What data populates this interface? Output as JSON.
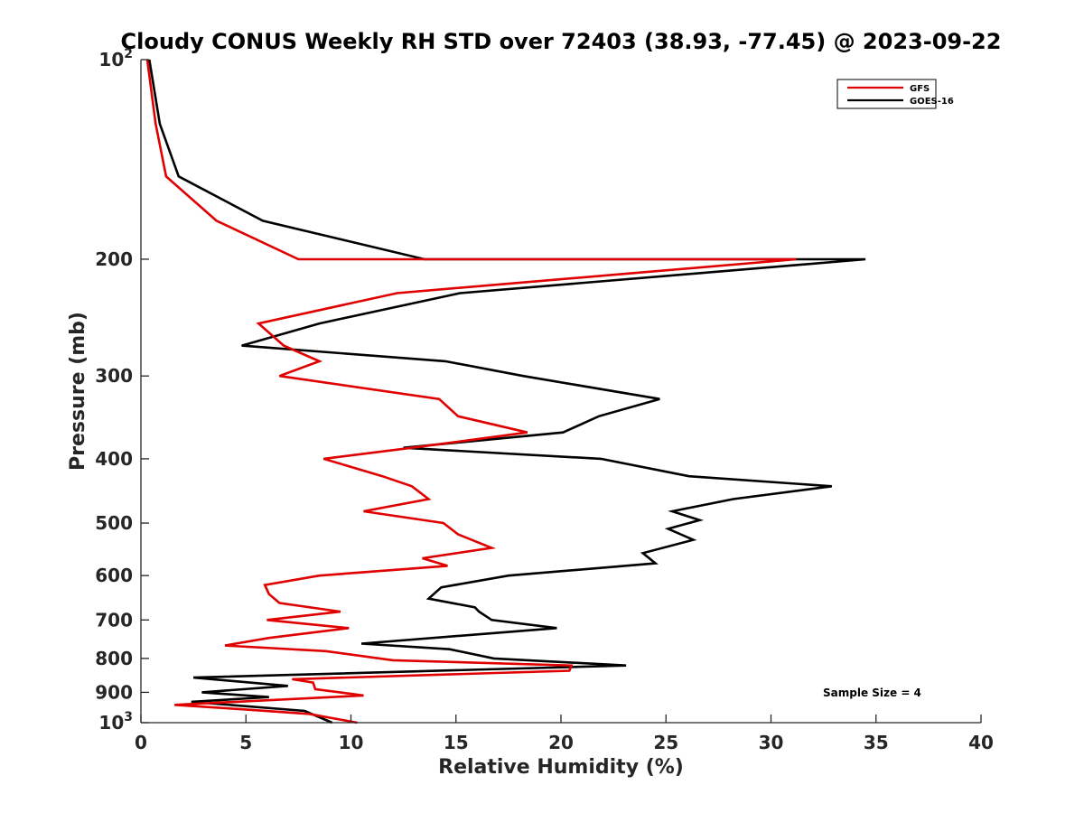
{
  "chart_data": {
    "type": "line",
    "title": "Cloudy CONUS Weekly RH STD over 72403 (38.93, -77.45) @ 2023-09-22",
    "xlabel": "Relative Humidity (%)",
    "ylabel": "Pressure (mb)",
    "xlim": [
      0,
      40
    ],
    "ylim": [
      100,
      1000
    ],
    "y_scale": "log",
    "y_reversed": true,
    "grid": false,
    "legend_position": "top-right",
    "x_ticks": [
      "0",
      "5",
      "10",
      "15",
      "20",
      "25",
      "30",
      "35",
      "40"
    ],
    "y_ticks": [
      {
        "value": 100,
        "label": "10",
        "sup": "2"
      },
      {
        "value": 200,
        "label": "200",
        "sup": ""
      },
      {
        "value": 300,
        "label": "300",
        "sup": ""
      },
      {
        "value": 400,
        "label": "400",
        "sup": ""
      },
      {
        "value": 500,
        "label": "500",
        "sup": ""
      },
      {
        "value": 600,
        "label": "600",
        "sup": ""
      },
      {
        "value": 700,
        "label": "700",
        "sup": ""
      },
      {
        "value": 800,
        "label": "800",
        "sup": ""
      },
      {
        "value": 900,
        "label": "900",
        "sup": ""
      },
      {
        "value": 1000,
        "label": "10",
        "sup": "3"
      }
    ],
    "annotation": "Sample Size = 4",
    "series": [
      {
        "name": "GFS",
        "color": "#e00000",
        "points": [
          [
            0.3,
            100
          ],
          [
            0.7,
            125
          ],
          [
            1.2,
            150
          ],
          [
            3.6,
            175
          ],
          [
            7.5,
            200
          ],
          [
            31.2,
            200
          ],
          [
            12.2,
            225
          ],
          [
            5.6,
            250
          ],
          [
            6.8,
            270
          ],
          [
            8.5,
            285
          ],
          [
            6.6,
            300
          ],
          [
            14.2,
            325
          ],
          [
            15.1,
            345
          ],
          [
            18.4,
            365
          ],
          [
            12.9,
            385
          ],
          [
            8.7,
            400
          ],
          [
            11.5,
            425
          ],
          [
            12.9,
            440
          ],
          [
            13.7,
            460
          ],
          [
            10.6,
            480
          ],
          [
            14.4,
            500
          ],
          [
            15.1,
            520
          ],
          [
            16.7,
            545
          ],
          [
            13.4,
            565
          ],
          [
            14.6,
            580
          ],
          [
            8.5,
            600
          ],
          [
            5.9,
            620
          ],
          [
            6.1,
            640
          ],
          [
            6.6,
            660
          ],
          [
            9.5,
            680
          ],
          [
            6.0,
            700
          ],
          [
            9.9,
            720
          ],
          [
            6.1,
            745
          ],
          [
            4.0,
            765
          ],
          [
            8.8,
            780
          ],
          [
            12.0,
            805
          ],
          [
            20.5,
            820
          ],
          [
            20.4,
            835
          ],
          [
            7.2,
            860
          ],
          [
            8.2,
            870
          ],
          [
            8.3,
            890
          ],
          [
            10.6,
            910
          ],
          [
            1.6,
            940
          ],
          [
            4.9,
            955
          ],
          [
            8.0,
            970
          ],
          [
            10.3,
            1000
          ]
        ]
      },
      {
        "name": "GOES-16",
        "color": "#000000",
        "points": [
          [
            0.4,
            100
          ],
          [
            0.9,
            125
          ],
          [
            1.8,
            150
          ],
          [
            5.8,
            175
          ],
          [
            13.5,
            200
          ],
          [
            34.5,
            200
          ],
          [
            15.2,
            225
          ],
          [
            8.5,
            250
          ],
          [
            4.8,
            270
          ],
          [
            14.5,
            285
          ],
          [
            18.2,
            300
          ],
          [
            24.7,
            325
          ],
          [
            21.8,
            345
          ],
          [
            20.1,
            365
          ],
          [
            12.5,
            385
          ],
          [
            21.9,
            400
          ],
          [
            26.1,
            425
          ],
          [
            32.9,
            440
          ],
          [
            28.2,
            460
          ],
          [
            25.3,
            480
          ],
          [
            26.6,
            495
          ],
          [
            25.1,
            510
          ],
          [
            26.3,
            530
          ],
          [
            23.9,
            555
          ],
          [
            24.5,
            575
          ],
          [
            17.5,
            600
          ],
          [
            14.3,
            625
          ],
          [
            13.7,
            650
          ],
          [
            15.9,
            670
          ],
          [
            16.1,
            680
          ],
          [
            16.7,
            700
          ],
          [
            19.8,
            720
          ],
          [
            10.5,
            760
          ],
          [
            14.7,
            775
          ],
          [
            16.8,
            800
          ],
          [
            23.1,
            820
          ],
          [
            2.5,
            855
          ],
          [
            7.0,
            880
          ],
          [
            2.9,
            900
          ],
          [
            6.1,
            915
          ],
          [
            2.4,
            930
          ],
          [
            7.8,
            960
          ],
          [
            9.1,
            1000
          ]
        ]
      }
    ]
  }
}
